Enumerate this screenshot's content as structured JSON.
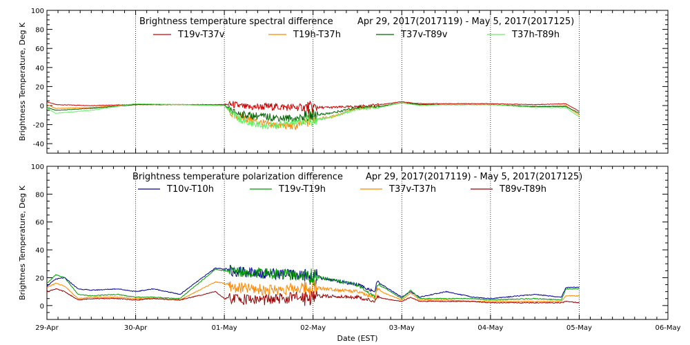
{
  "chart_data": [
    {
      "type": "line",
      "title": "Brightness temperature spectral difference",
      "date_range": "Apr 29, 2017(2017119)  -  May  5, 2017(2017125)",
      "ylabel": "Brightness Temperature, Deg K",
      "ylim": [
        -50,
        100
      ],
      "yticks": [
        -40,
        -20,
        0,
        20,
        40,
        60,
        80,
        100
      ],
      "grid": "vertical dotted lines at day boundaries",
      "legend_position": "top",
      "series": [
        {
          "name": "T19v-T37v",
          "color": "#cc0000",
          "x": [
            0,
            0.1,
            0.5,
            1.0,
            1.5,
            2.0,
            2.1,
            2.25,
            2.5,
            2.8,
            3.0,
            3.2,
            3.5,
            3.75,
            4.0,
            4.2,
            4.5,
            5.0,
            5.5,
            5.85,
            6.0
          ],
          "values": [
            4,
            1,
            0,
            1,
            1,
            1,
            1,
            -2,
            -1,
            -2,
            -2,
            -2,
            -1,
            1,
            4,
            2,
            2,
            2,
            1,
            2,
            -6
          ]
        },
        {
          "name": "T19h-T37h",
          "color": "#ff8800",
          "x": [
            0,
            0.1,
            0.5,
            1.0,
            1.5,
            2.0,
            2.1,
            2.25,
            2.5,
            2.8,
            3.0,
            3.2,
            3.5,
            3.75,
            4.0,
            4.2,
            4.5,
            5.0,
            5.5,
            5.85,
            6.0
          ],
          "values": [
            1,
            -3,
            -2,
            1,
            1,
            0,
            -10,
            -14,
            -20,
            -22,
            -14,
            -12,
            -3,
            -1,
            3,
            1,
            1,
            1,
            -1,
            0,
            -10
          ]
        },
        {
          "name": "T37v-T89v",
          "color": "#006600",
          "x": [
            0,
            0.1,
            0.5,
            1.0,
            1.5,
            2.0,
            2.1,
            2.25,
            2.5,
            2.8,
            3.0,
            3.2,
            3.5,
            3.75,
            4.0,
            4.2,
            4.5,
            5.0,
            5.5,
            5.85,
            6.0
          ],
          "values": [
            -2,
            -5,
            -3,
            1,
            1,
            0,
            -7,
            -10,
            -12,
            -14,
            -10,
            -8,
            -2,
            -1,
            3,
            1,
            1,
            1,
            -1,
            -1,
            -8
          ]
        },
        {
          "name": "T37h-T89h",
          "color": "#66ee66",
          "x": [
            0,
            0.1,
            0.5,
            1.0,
            1.5,
            2.0,
            2.1,
            2.25,
            2.5,
            2.8,
            3.0,
            3.2,
            3.5,
            3.75,
            4.0,
            4.2,
            4.5,
            5.0,
            5.5,
            5.85,
            6.0
          ],
          "values": [
            -3,
            -8,
            -5,
            2,
            1,
            0,
            -10,
            -18,
            -22,
            -18,
            -16,
            -12,
            -4,
            -2,
            3,
            0,
            1,
            1,
            -2,
            -2,
            -12
          ]
        }
      ]
    },
    {
      "type": "line",
      "title": "Brightness temperature polarization difference",
      "date_range": "Apr 29, 2017(2017119)  -  May  5, 2017(2017125)",
      "ylabel": "Brightnes Temperature, Deg K",
      "xlabel": "Date (EST)",
      "ylim": [
        -10,
        100
      ],
      "yticks": [
        0,
        20,
        40,
        60,
        80,
        100
      ],
      "xticks": [
        "29-Apr",
        "30-Apr",
        "01-May",
        "02-May",
        "03-May",
        "04-May",
        "05-May",
        "06-May"
      ],
      "grid": "vertical dotted lines at day boundaries",
      "legend_position": "top",
      "series": [
        {
          "name": "T10v-T10h",
          "color": "#000099",
          "x": [
            0,
            0.1,
            0.2,
            0.35,
            0.5,
            0.8,
            1.0,
            1.2,
            1.5,
            1.9,
            2.0,
            2.1,
            2.5,
            3.0,
            3.5,
            3.7,
            3.72,
            3.8,
            4.0,
            4.1,
            4.2,
            4.5,
            4.8,
            5.0,
            5.5,
            5.8,
            5.85,
            6.0
          ],
          "values": [
            14,
            19,
            20,
            12,
            11,
            12,
            10,
            12,
            8,
            27,
            26,
            25,
            23,
            21,
            15,
            10,
            17,
            14,
            6,
            10,
            6,
            10,
            6,
            5,
            8,
            6,
            13,
            13
          ]
        },
        {
          "name": "T19v-T19h",
          "color": "#009900",
          "x": [
            0,
            0.1,
            0.2,
            0.35,
            0.5,
            0.8,
            1.0,
            1.2,
            1.5,
            1.9,
            2.0,
            2.1,
            2.5,
            3.0,
            3.5,
            3.7,
            3.72,
            3.8,
            4.0,
            4.1,
            4.2,
            4.5,
            4.8,
            5.0,
            5.5,
            5.8,
            5.85,
            6.0
          ],
          "values": [
            16,
            22,
            20,
            8,
            7,
            8,
            6,
            6,
            5,
            26,
            25,
            25,
            23,
            21,
            15,
            6,
            15,
            13,
            5,
            11,
            5,
            5,
            5,
            4,
            5,
            4,
            12,
            12
          ]
        },
        {
          "name": "T37v-T37h",
          "color": "#ff8800",
          "x": [
            0,
            0.1,
            0.2,
            0.35,
            0.5,
            0.8,
            1.0,
            1.2,
            1.5,
            1.9,
            2.0,
            2.1,
            2.5,
            3.0,
            3.5,
            3.7,
            3.72,
            3.8,
            4.0,
            4.1,
            4.2,
            4.5,
            4.8,
            5.0,
            5.5,
            5.8,
            5.85,
            6.0
          ],
          "values": [
            13,
            16,
            14,
            5,
            6,
            6,
            5,
            5,
            4,
            17,
            16,
            13,
            11,
            13,
            10,
            5,
            12,
            9,
            4,
            9,
            4,
            4,
            3,
            3,
            3,
            3,
            7,
            7
          ]
        },
        {
          "name": "T89v-T89h",
          "color": "#990000",
          "x": [
            0,
            0.1,
            0.2,
            0.35,
            0.5,
            0.8,
            1.0,
            1.2,
            1.5,
            1.9,
            2.0,
            2.1,
            2.5,
            3.0,
            3.5,
            3.7,
            3.72,
            3.8,
            4.0,
            4.1,
            4.2,
            4.5,
            4.8,
            5.0,
            5.5,
            5.8,
            5.85,
            6.0
          ],
          "values": [
            10,
            12,
            10,
            4,
            5,
            5,
            4,
            5,
            4,
            10,
            5,
            5,
            4,
            7,
            6,
            3,
            6,
            5,
            3,
            6,
            3,
            3,
            3,
            2,
            2,
            2,
            3,
            2
          ]
        }
      ]
    }
  ]
}
